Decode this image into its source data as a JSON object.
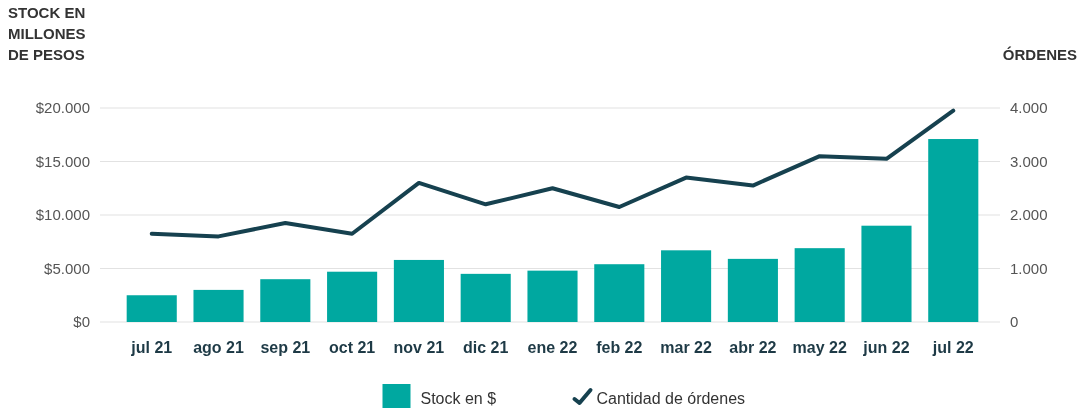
{
  "chart_data": {
    "type": "bar",
    "ylabel": "STOCK EN MILLONES DE PESOS",
    "y2label": "ÓRDENES",
    "categories": [
      "jul 21",
      "ago 21",
      "sep 21",
      "oct 21",
      "nov 21",
      "dic 21",
      "ene 22",
      "feb 22",
      "mar 22",
      "abr 22",
      "may 22",
      "jun 22",
      "jul 22"
    ],
    "series": [
      {
        "name": "Stock en $",
        "color": "#00a8a0",
        "values": [
          2500,
          3000,
          4000,
          4700,
          5800,
          4500,
          4800,
          5400,
          6700,
          5900,
          6900,
          9000,
          17100
        ]
      },
      {
        "name": "Cantidad de órdenes",
        "type": "line",
        "axis": "y2",
        "color": "#16414f",
        "values": [
          1650,
          1600,
          1850,
          1650,
          2600,
          2200,
          2500,
          2150,
          2700,
          2550,
          3100,
          3050,
          3950
        ]
      }
    ],
    "ylim": [
      0,
      20000
    ],
    "yticks": [
      {
        "value": 0,
        "label": "$0"
      },
      {
        "value": 5000,
        "label": "$5.000"
      },
      {
        "value": 10000,
        "label": "$10.000"
      },
      {
        "value": 15000,
        "label": "$15.000"
      },
      {
        "value": 20000,
        "label": "$20.000"
      }
    ],
    "y2lim": [
      0,
      4000
    ],
    "y2ticks": [
      0,
      {
        "value": 1000,
        "label": "1.000"
      },
      {
        "value": 2000,
        "label": "2.000"
      },
      {
        "value": 3000,
        "label": "3.000"
      },
      {
        "value": 4000,
        "label": "4.000"
      }
    ],
    "grid": "y",
    "legend": "bottom",
    "marker": "none",
    "line_style": "solid"
  }
}
